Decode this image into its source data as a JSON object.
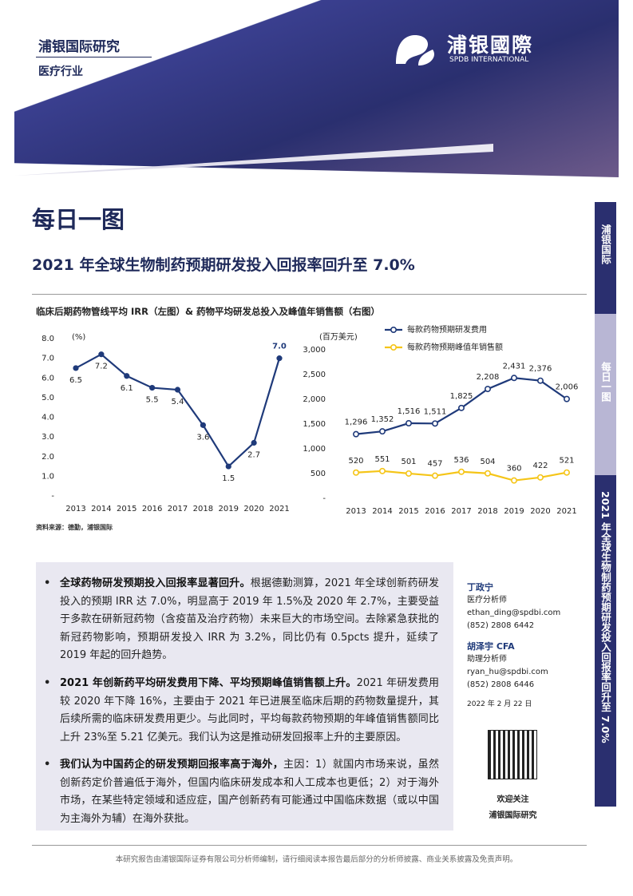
{
  "header": {
    "org": "浦银国际研究",
    "sector": "医疗行业",
    "logo": "浦银國際",
    "logo_en": "SPDB INTERNATIONAL"
  },
  "page_title": "每日一图",
  "subtitle": "2021 年全球生物制药预期研发投入回报率回升至 7.0%",
  "figure_caption": "临床后期药物管线平均 IRR（左图）& 药物平均研发总投入及峰值年销售额（右图）",
  "chart_data": [
    {
      "type": "line",
      "y_unit": "(%)",
      "categories": [
        "2013",
        "2014",
        "2015",
        "2016",
        "2017",
        "2018",
        "2019",
        "2020",
        "2021"
      ],
      "values": [
        6.5,
        7.2,
        6.1,
        5.5,
        5.4,
        3.6,
        1.5,
        2.7,
        7.0
      ],
      "value_labels": [
        "6.5",
        "7.2",
        "6.1",
        "5.5",
        "5.4",
        "3.6",
        "1.5",
        "2.7",
        "7.0"
      ],
      "color": "#1f3a7a",
      "ylim": [
        0,
        8
      ],
      "yticks": [
        {
          "value": 0,
          "label": "-"
        },
        {
          "value": 1,
          "label": "1.0"
        },
        {
          "value": 2,
          "label": "2.0"
        },
        {
          "value": 3,
          "label": "3.0"
        },
        {
          "value": 4,
          "label": "4.0"
        },
        {
          "value": 5,
          "label": "5.0"
        },
        {
          "value": 6,
          "label": "6.0"
        },
        {
          "value": 7,
          "label": "7.0"
        },
        {
          "value": 8,
          "label": "8.0"
        }
      ],
      "grid": false
    },
    {
      "type": "line",
      "y_unit": "(百万美元)",
      "categories": [
        "2013",
        "2014",
        "2015",
        "2016",
        "2017",
        "2018",
        "2019",
        "2020",
        "2021"
      ],
      "series": [
        {
          "name": "每款药物预期研发费用",
          "color": "#1f3a7a",
          "values": [
            1296,
            1352,
            1516,
            1511,
            1825,
            2208,
            2431,
            2376,
            2006
          ],
          "value_labels": [
            "1,296",
            "1,352",
            "1,516",
            "1,511",
            "1,825",
            "2,208",
            "2,431",
            "2,376",
            "2,006"
          ]
        },
        {
          "name": "每款药物预期峰值年销售额",
          "color": "#f5c518",
          "values": [
            520,
            551,
            501,
            457,
            536,
            504,
            360,
            422,
            521
          ]
        }
      ],
      "ylim": [
        0,
        3000
      ],
      "yticks": [
        {
          "value": 0,
          "label": "-"
        },
        500,
        {
          "value": 1000,
          "label": "1,000"
        },
        {
          "value": 1500,
          "label": "1,500"
        },
        {
          "value": 2000,
          "label": "2,000"
        },
        {
          "value": 2500,
          "label": "2,500"
        },
        {
          "value": 3000,
          "label": "3,000"
        }
      ],
      "grid": false,
      "legend": "top"
    }
  ],
  "source": "资料来源：德勤，浦银国际",
  "bullets": [
    {
      "lead": "全球药物研发预期投入回报率显著回升。",
      "text": "根据德勤测算，2021 年全球创新药研发投入的预期 IRR 达 7.0%，明显高于 2019 年 1.5%及 2020 年 2.7%，主要受益于多款在研新冠药物（含疫苗及治疗药物）未来巨大的市场空间。去除紧急获批的新冠药物影响，预期研发投入 IRR 为 3.2%，同比仍有 0.5pcts 提升，延续了 2019 年起的回升趋势。"
    },
    {
      "lead": "2021 年创新药平均研发费用下降、平均预期峰值销售额上升。",
      "text": "2021 年研发费用较 2020 年下降 16%，主要由于 2021 年已进展至临床后期的药物数量提升，其后续所需的临床研发费用更少。与此同时，平均每款药物预期的年峰值销售额同比上升 23%至 5.21 亿美元。我们认为这是推动研发回报率上升的主要原因。"
    },
    {
      "lead": "我们认为中国药企的研发预期回报率高于海外，",
      "text": "主因：1）就国内市场来说，虽然创新药定价普遍低于海外，但国内临床研发成本和人工成本也更低；2）对于海外市场，在某些特定领域和适应症，国产创新药有可能通过中国临床数据（或以中国为主海外为辅）在海外获批。"
    }
  ],
  "analysts": [
    {
      "name": "丁政宁",
      "role": "医疗分析师",
      "email": "ethan_ding@spdbi.com",
      "phone": "(852) 2808 6442"
    },
    {
      "name": "胡泽宇 CFA",
      "role": "助理分析师",
      "email": "ryan_hu@spdbi.com",
      "phone": "(852) 2808 6446"
    }
  ],
  "date": "2022 年 2 月 22 日",
  "qr_caption": [
    "欢迎关注",
    "浦银国际研究"
  ],
  "sidebar": [
    "浦银国际",
    "每日一图",
    "2021 年全球生物制药预期研发投入回报率回升至 7.0%"
  ],
  "footer": "本研究报告由浦银国际证券有限公司分析师编制，请行细阅读本报告最后部分的分析师披露、商业关系披露及免责声明。"
}
